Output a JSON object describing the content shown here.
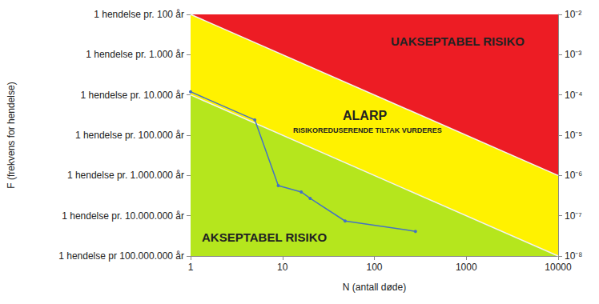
{
  "chart_data": {
    "type": "line",
    "log": true,
    "grid": false,
    "x_label": "N (antall døde)",
    "y_label": "F (frekvens for hendelse)",
    "xlim": [
      1,
      10000
    ],
    "xticks": [
      1,
      10,
      100,
      1000,
      10000
    ],
    "ylim": [
      1e-08,
      0.01
    ],
    "yticks": [
      {
        "value": 0.01,
        "label": "1 hendelse pr. 100 år"
      },
      {
        "value": 0.001,
        "label": "1 hendelse pr. 1.000 år"
      },
      {
        "value": 0.0001,
        "label": "1 hendelse pr. 10.000 år"
      },
      {
        "value": 1e-05,
        "label": "1 hendelse pr. 100.000 år"
      },
      {
        "value": 1e-06,
        "label": "1 hendelse pr. 1.000.000 år"
      },
      {
        "value": 1e-07,
        "label": "1 hendelse pr. 10.000.000 år"
      },
      {
        "value": 1e-08,
        "label": "1 hendelse pr 100.000.000 år"
      }
    ],
    "y2lim": [
      1e-08,
      0.01
    ],
    "y2ticks": [
      {
        "value": 0.01,
        "label": "10⁻²"
      },
      {
        "value": 0.001,
        "label": "10⁻³"
      },
      {
        "value": 0.0001,
        "label": "10⁻⁴"
      },
      {
        "value": 1e-05,
        "label": "10⁻⁵"
      },
      {
        "value": 1e-06,
        "label": "10⁻⁶"
      },
      {
        "value": 1e-07,
        "label": "10⁻⁷"
      },
      {
        "value": 1e-08,
        "label": "10⁻⁸"
      }
    ],
    "regions": [
      {
        "label": "UAKSEPTABEL RISIKO",
        "color": "#ed1c24"
      },
      {
        "label": "ALARP",
        "sublabel": "RISIKOREDUSERENDE TILTAK VURDERES",
        "color": "#fff200"
      },
      {
        "label": "AKSEPTABEL RISIKO",
        "color": "#b5e61d"
      }
    ],
    "limits": [
      {
        "x": [
          1,
          10000
        ],
        "y": [
          0.01,
          1e-06
        ]
      },
      {
        "x": [
          1,
          10000
        ],
        "y": [
          0.0001,
          1e-08
        ]
      }
    ],
    "x": [
      1,
      5,
      9,
      16,
      20,
      48,
      280
    ],
    "series": [
      {
        "color": "#4472c4",
        "marker": "circle",
        "line_style": "solid",
        "values": [
          0.00012,
          2.4e-05,
          5.6e-07,
          3.9e-07,
          2.7e-07,
          7.4e-08,
          4.1e-08
        ]
      }
    ]
  }
}
